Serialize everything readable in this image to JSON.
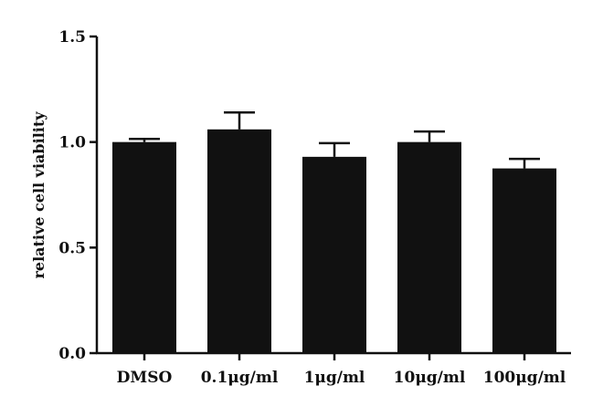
{
  "chart_data": {
    "type": "bar",
    "ylabel": "relative cell viability",
    "xlabel": "",
    "ylim": [
      0,
      1.5
    ],
    "yticks": [
      "0.0",
      "0.5",
      "1.0",
      "1.5"
    ],
    "categories": [
      "DMSO",
      "0.1μg/ml",
      "1μg/ml",
      "10μg/ml",
      "100μg/ml"
    ],
    "values": [
      1.0,
      1.06,
      0.93,
      1.0,
      0.875
    ],
    "errors": [
      0.015,
      0.08,
      0.065,
      0.05,
      0.045
    ],
    "bar_color": "#111111",
    "grid": false,
    "legend": "none"
  }
}
